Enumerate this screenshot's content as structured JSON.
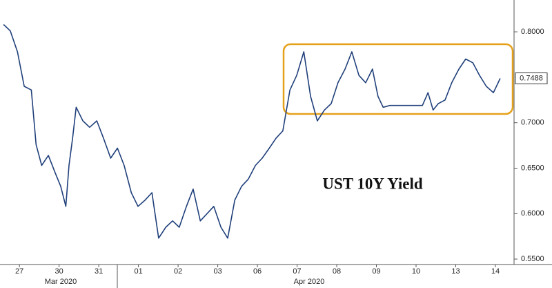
{
  "chart_data": {
    "type": "line",
    "annotation": "UST 10Y Yield",
    "month_labels": [
      "Mar 2020",
      "Apr 2020"
    ],
    "x": [
      -0.4,
      -0.23,
      -0.05,
      0.12,
      0.3,
      0.42,
      0.56,
      0.73,
      0.9,
      1.04,
      1.17,
      1.25,
      1.34,
      1.43,
      1.6,
      1.77,
      1.95,
      2.12,
      2.3,
      2.47,
      2.64,
      2.82,
      2.99,
      3.17,
      3.34,
      3.51,
      3.69,
      3.86,
      4.03,
      4.21,
      4.38,
      4.56,
      4.73,
      4.9,
      5.08,
      5.25,
      5.43,
      5.6,
      5.77,
      5.95,
      6.12,
      6.3,
      6.47,
      6.64,
      6.82,
      6.99,
      7.17,
      7.34,
      7.51,
      7.69,
      7.86,
      8.03,
      8.21,
      8.38,
      8.56,
      8.73,
      8.9,
      9.04,
      9.17,
      9.34,
      9.95,
      10.16,
      10.3,
      10.43,
      10.56,
      10.73,
      10.9,
      11.08,
      11.25,
      11.43,
      11.6,
      11.77,
      11.95,
      12.12
    ],
    "series": [
      {
        "color": "#1f3f7a",
        "values": [
          0.808,
          0.801,
          0.778,
          0.74,
          0.736,
          0.676,
          0.653,
          0.664,
          0.645,
          0.63,
          0.608,
          0.653,
          0.683,
          0.717,
          0.702,
          0.695,
          0.702,
          0.683,
          0.661,
          0.672,
          0.653,
          0.623,
          0.608,
          0.615,
          0.623,
          0.573,
          0.585,
          0.592,
          0.585,
          0.608,
          0.627,
          0.592,
          0.6,
          0.608,
          0.585,
          0.573,
          0.615,
          0.63,
          0.638,
          0.653,
          0.661,
          0.672,
          0.683,
          0.691,
          0.736,
          0.752,
          0.778,
          0.729,
          0.702,
          0.714,
          0.721,
          0.744,
          0.759,
          0.778,
          0.752,
          0.744,
          0.759,
          0.729,
          0.717,
          0.719,
          0.719,
          0.719,
          0.733,
          0.714,
          0.721,
          0.725,
          0.744,
          0.759,
          0.77,
          0.766,
          0.752,
          0.74,
          0.733,
          0.7488
        ]
      }
    ],
    "xlim": [
      -0.49,
      12.47
    ],
    "xticks": [
      {
        "value": 0,
        "label": "27"
      },
      {
        "value": 1,
        "label": "30"
      },
      {
        "value": 2,
        "label": "31"
      },
      {
        "value": 3,
        "label": "01"
      },
      {
        "value": 4,
        "label": "02"
      },
      {
        "value": 5,
        "label": "03"
      },
      {
        "value": 6,
        "label": "06"
      },
      {
        "value": 7,
        "label": "07"
      },
      {
        "value": 8,
        "label": "08"
      },
      {
        "value": 9,
        "label": "09"
      },
      {
        "value": 10,
        "label": "10"
      },
      {
        "value": 11,
        "label": "13"
      },
      {
        "value": 12,
        "label": "14"
      }
    ],
    "ylim": [
      0.544,
      0.835
    ],
    "yticks": [
      {
        "value": 0.55,
        "label": "0.5500"
      },
      {
        "value": 0.6,
        "label": "0.6000"
      },
      {
        "value": 0.65,
        "label": "0.6500"
      },
      {
        "value": 0.7,
        "label": "0.7000"
      },
      {
        "value": 0.8,
        "label": "0.8000"
      }
    ],
    "grid": false
  }
}
